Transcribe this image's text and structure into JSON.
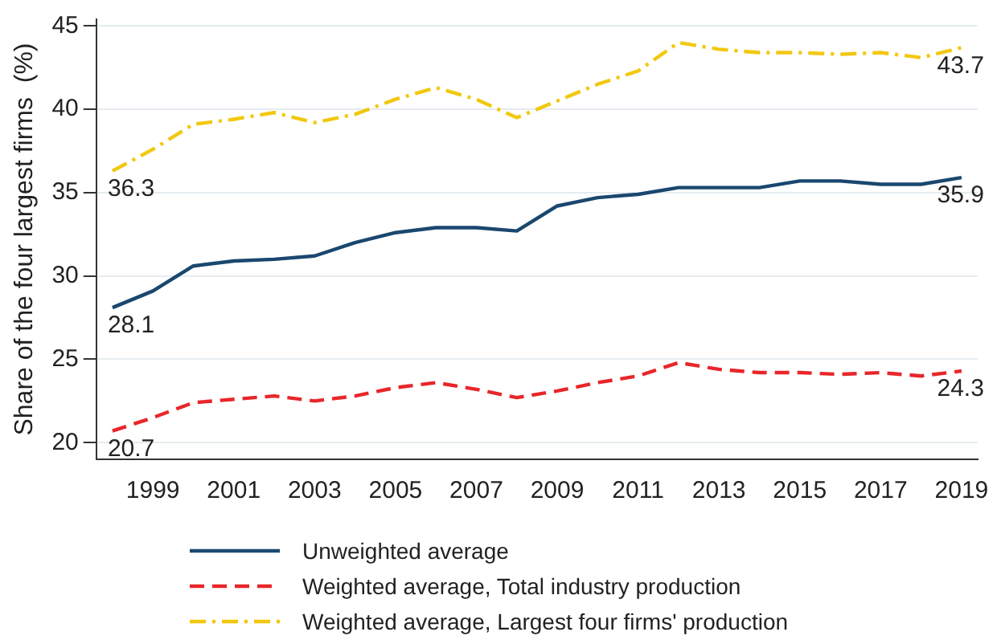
{
  "chart_data": {
    "type": "line",
    "ylabel": "Share of the four largest firms  (%)",
    "x": [
      1998,
      1999,
      2000,
      2001,
      2002,
      2003,
      2004,
      2005,
      2006,
      2007,
      2008,
      2009,
      2010,
      2011,
      2012,
      2013,
      2014,
      2015,
      2016,
      2017,
      2018,
      2019
    ],
    "xlim": [
      1997.6,
      2019.4
    ],
    "xticks": [
      1999,
      2001,
      2003,
      2005,
      2007,
      2009,
      2011,
      2013,
      2015,
      2017,
      2019
    ],
    "ylim": [
      19,
      45.4
    ],
    "yticks": [
      20,
      25,
      30,
      35,
      40,
      45
    ],
    "grid": "y",
    "legend": "bottom",
    "marker": "none",
    "series": [
      {
        "name": "Unweighted average",
        "color": "#1a476f",
        "line_style": "solid",
        "values": [
          28.1,
          29.1,
          30.6,
          30.9,
          31.0,
          31.2,
          32.0,
          32.6,
          32.9,
          32.9,
          32.7,
          34.2,
          34.7,
          34.9,
          35.3,
          35.3,
          35.3,
          35.7,
          35.7,
          35.5,
          35.5,
          35.9
        ],
        "value_labels": [
          "28.1",
          null,
          null,
          null,
          null,
          null,
          null,
          null,
          null,
          null,
          null,
          null,
          null,
          null,
          null,
          null,
          null,
          null,
          null,
          null,
          null,
          "35.9"
        ]
      },
      {
        "name": "Weighted average, Total industry production",
        "color": "#e8262a",
        "line_style": "dashed",
        "values": [
          20.7,
          21.5,
          22.4,
          22.6,
          22.8,
          22.5,
          22.8,
          23.3,
          23.6,
          23.2,
          22.7,
          23.1,
          23.6,
          24.0,
          24.8,
          24.4,
          24.2,
          24.2,
          24.1,
          24.2,
          24.0,
          24.3
        ],
        "value_labels": [
          "20.7",
          null,
          null,
          null,
          null,
          null,
          null,
          null,
          null,
          null,
          null,
          null,
          null,
          null,
          null,
          null,
          null,
          null,
          null,
          null,
          null,
          "24.3"
        ]
      },
      {
        "name": "Weighted average, Largest four firms' production",
        "color": "#f2c80f",
        "line_style": "dashdot",
        "values": [
          36.3,
          37.6,
          39.1,
          39.4,
          39.8,
          39.2,
          39.7,
          40.6,
          41.3,
          40.6,
          39.5,
          40.5,
          41.5,
          42.3,
          44.0,
          43.6,
          43.4,
          43.4,
          43.3,
          43.4,
          43.1,
          43.7
        ],
        "value_labels": [
          "36.3",
          null,
          null,
          null,
          null,
          null,
          null,
          null,
          null,
          null,
          null,
          null,
          null,
          null,
          null,
          null,
          null,
          null,
          null,
          null,
          null,
          "43.7"
        ]
      }
    ]
  }
}
